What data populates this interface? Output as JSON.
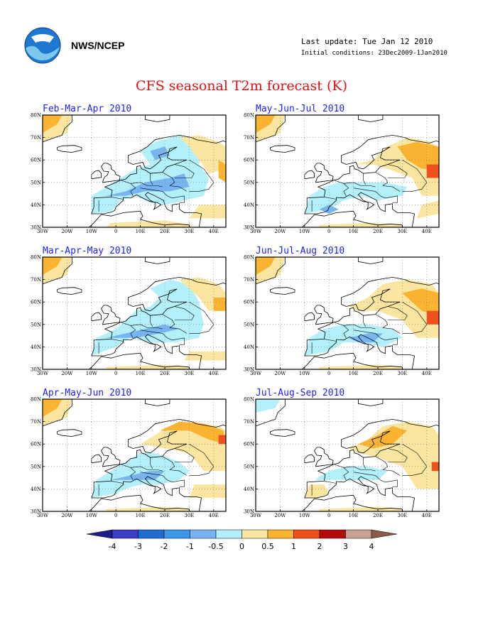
{
  "header": {
    "agency": "NWS/NCEP",
    "last_update": "Last update: Tue Jan 12 2010",
    "initial_conditions": "Initial conditions: 23Dec2009-1Jan2010",
    "title": "CFS seasonal T2m forecast (K)"
  },
  "logo": {
    "icon": "noaa-logo-icon"
  },
  "map_axes": {
    "lon_labels": [
      "30W",
      "20W",
      "10W",
      "0",
      "10E",
      "20E",
      "30E",
      "40E"
    ],
    "lat_labels": [
      "30N",
      "40N",
      "50N",
      "60N",
      "70N",
      "80N"
    ]
  },
  "panels": [
    {
      "title": "Feb-Mar-Apr 2010"
    },
    {
      "title": "May-Jun-Jul 2010"
    },
    {
      "title": "Mar-Apr-May 2010"
    },
    {
      "title": "Jun-Jul-Aug 2010"
    },
    {
      "title": "Apr-May-Jun 2010"
    },
    {
      "title": "Jul-Aug-Sep 2010"
    }
  ],
  "colorbar": {
    "labels": [
      "-4",
      "-3",
      "-2",
      "-1",
      "-0.5",
      "0",
      "0.5",
      "1",
      "2",
      "3",
      "4"
    ],
    "colors": [
      "#1e1e8c",
      "#3c3cc8",
      "#1e6ed2",
      "#3c96e6",
      "#78b4f0",
      "#b4f0fa",
      "#fae6a0",
      "#fab432",
      "#f0501e",
      "#b40a0a",
      "#c8a096",
      "#8c5a4b"
    ]
  },
  "colors": {
    "title": "#e01010",
    "panel_title": "#1e1eff",
    "land_neutral": "#ffffff",
    "ocean": "#ffffff"
  }
}
